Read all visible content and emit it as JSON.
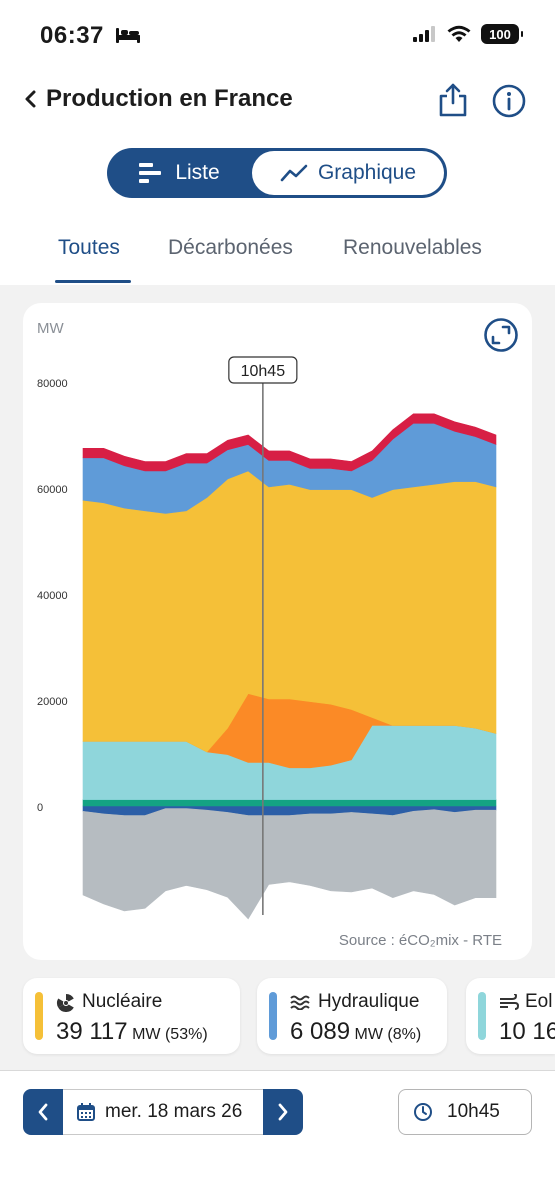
{
  "status_bar": {
    "time": "06:37",
    "battery": "100"
  },
  "nav": {
    "title": "Production en France"
  },
  "view_toggle": {
    "list_label": "Liste",
    "graph_label": "Graphique",
    "selected": "Graphique"
  },
  "tabs": [
    {
      "label": "Toutes",
      "active": true
    },
    {
      "label": "Décarbonées",
      "active": false
    },
    {
      "label": "Renouvelables",
      "active": false
    }
  ],
  "chart": {
    "unit_label": "MW",
    "cursor_label": "10h45",
    "source": "Source : éCO₂mix - RTE"
  },
  "chart_data": {
    "type": "area",
    "stacked": true,
    "ylabel": "MW",
    "ylim": [
      -20000,
      82000
    ],
    "yticks": [
      0,
      20000,
      40000,
      60000,
      80000
    ],
    "grid": false,
    "cursor": "10h45",
    "x": [
      0,
      1,
      2,
      3,
      4,
      5,
      6,
      7,
      8,
      9,
      10,
      11,
      12,
      13,
      14,
      15,
      16,
      17,
      18,
      19,
      20
    ],
    "series": [
      {
        "color": "#2b5ea7",
        "sign": "negative",
        "values": [
          -1000,
          -1500,
          -1800,
          -1800,
          -500,
          -500,
          -800,
          -1200,
          -1800,
          -1800,
          -1800,
          -1500,
          -1500,
          -1200,
          -1500,
          -1800,
          -1000,
          -700,
          -1200,
          -800,
          -800
        ]
      },
      {
        "color": "#b6bcc1",
        "sign": "negative",
        "values": [
          -15800,
          -17000,
          -18000,
          -17500,
          -15500,
          -14500,
          -15000,
          -16000,
          -19500,
          -13000,
          -12500,
          -13500,
          -14500,
          -15000,
          -14000,
          -15500,
          -15000,
          -16000,
          -17500,
          -16500,
          -16500
        ]
      },
      {
        "color": "#14a383",
        "values": [
          1200,
          1200,
          1200,
          1200,
          1200,
          1200,
          1200,
          1200,
          1200,
          1200,
          1200,
          1200,
          1200,
          1200,
          1200,
          1200,
          1200,
          1200,
          1200,
          1200,
          1200
        ]
      },
      {
        "color": "#8fd6db",
        "values": [
          11000,
          11000,
          11000,
          11000,
          11000,
          11000,
          9000,
          8500,
          7000,
          7000,
          6000,
          6000,
          6500,
          7500,
          14000,
          14000,
          14000,
          14000,
          14000,
          13500,
          12500
        ]
      },
      {
        "color": "#fb8a26",
        "values": [
          0,
          0,
          0,
          0,
          0,
          0,
          0,
          5000,
          13000,
          12000,
          13000,
          12500,
          11500,
          9500,
          1500,
          0,
          0,
          0,
          0,
          0,
          0
        ]
      },
      {
        "color": "#f5c038",
        "values": [
          45500,
          45000,
          44000,
          43500,
          43000,
          43500,
          48000,
          47000,
          42000,
          40000,
          40500,
          40000,
          40500,
          41500,
          41500,
          44500,
          45000,
          45500,
          46000,
          46500,
          46500
        ]
      },
      {
        "color": "#5f9bd8",
        "values": [
          8000,
          8500,
          8000,
          7500,
          8000,
          9000,
          6500,
          5500,
          5000,
          5000,
          4500,
          4000,
          4000,
          3500,
          7000,
          9500,
          12000,
          11500,
          9500,
          8500,
          8000
        ]
      },
      {
        "color": "#d71f45",
        "values": [
          1800,
          1800,
          1800,
          1800,
          1800,
          1800,
          1800,
          1800,
          1800,
          1800,
          1800,
          1800,
          1800,
          1800,
          1800,
          1800,
          1800,
          1800,
          1800,
          1800,
          1800
        ]
      }
    ]
  },
  "energy_cards": [
    {
      "label": "Nucléaire",
      "value": "39 117",
      "unit": "MW",
      "pct": "(53%)",
      "color": "#f5c038",
      "icon": "nuclear-icon"
    },
    {
      "label": "Hydraulique",
      "value": "6 089",
      "unit": "MW",
      "pct": "(8%)",
      "color": "#5f9bd8",
      "icon": "water-waves-icon"
    },
    {
      "label": "Eol",
      "value": "10 16",
      "unit": "",
      "pct": "",
      "color": "#8fd6db",
      "icon": "wind-icon"
    }
  ],
  "date_picker": {
    "date": "mer. 18 mars 26"
  },
  "time_picker": {
    "time": "10h45"
  }
}
